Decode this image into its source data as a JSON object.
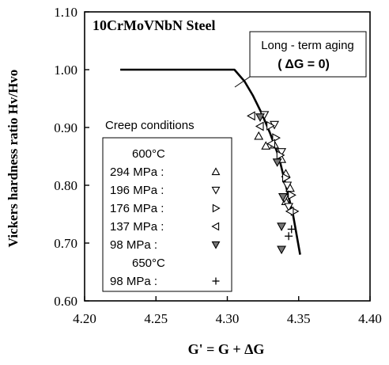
{
  "chart_data": {
    "type": "scatter",
    "title": "10CrMoVNbN Steel",
    "xlabel": "G' = G + ΔG",
    "ylabel": "Vickers hardness ratio Hv/Hvo",
    "xlim": [
      4.2,
      4.4
    ],
    "ylim": [
      0.6,
      1.1
    ],
    "xticks": [
      "4.20",
      "4.25",
      "4.30",
      "4.35",
      "4.40"
    ],
    "yticks": [
      "0.60",
      "0.70",
      "0.80",
      "0.90",
      "1.00",
      "1.10"
    ],
    "grid": false,
    "curve": {
      "label_line1": "Long - term aging",
      "label_line2": "( ΔG = 0)",
      "points": [
        [
          4.225,
          1.0
        ],
        [
          4.305,
          1.0
        ],
        [
          4.312,
          0.98
        ],
        [
          4.318,
          0.955
        ],
        [
          4.324,
          0.925
        ],
        [
          4.33,
          0.89
        ],
        [
          4.336,
          0.85
        ],
        [
          4.341,
          0.8
        ],
        [
          4.346,
          0.75
        ],
        [
          4.351,
          0.68
        ]
      ]
    },
    "legend": {
      "title": "Creep conditions",
      "placement": "lower-left",
      "groups": [
        {
          "temp": "600°C",
          "entries": [
            {
              "label": "294 MPa :",
              "marker": "triangle-up"
            },
            {
              "label": "196 MPa :",
              "marker": "triangle-down"
            },
            {
              "label": "176 MPa :",
              "marker": "triangle-right"
            },
            {
              "label": "137 MPa :",
              "marker": "triangle-left"
            },
            {
              "label": "98 MPa :",
              "marker": "triangle-down-filled"
            }
          ]
        },
        {
          "temp": "650°C",
          "entries": [
            {
              "label": "98 MPa :",
              "marker": "plus"
            }
          ]
        }
      ]
    },
    "series": [
      {
        "marker": "triangle-up",
        "points": [
          [
            4.322,
            0.885
          ],
          [
            4.327,
            0.868
          ],
          [
            4.333,
            0.87
          ],
          [
            4.338,
            0.845
          ],
          [
            4.341,
            0.82
          ],
          [
            4.344,
            0.795
          ],
          [
            4.341,
            0.772
          ]
        ]
      },
      {
        "marker": "triangle-down",
        "points": [
          [
            4.326,
            0.922
          ],
          [
            4.333,
            0.905
          ],
          [
            4.338,
            0.858
          ],
          [
            4.342,
            0.8
          ],
          [
            4.34,
            0.778
          ],
          [
            4.343,
            0.763
          ]
        ]
      },
      {
        "marker": "triangle-right",
        "points": [
          [
            4.33,
            0.903
          ],
          [
            4.334,
            0.882
          ],
          [
            4.337,
            0.852
          ],
          [
            4.341,
            0.813
          ],
          [
            4.345,
            0.783
          ],
          [
            4.347,
            0.755
          ]
        ]
      },
      {
        "marker": "triangle-left",
        "points": [
          [
            4.317,
            0.92
          ],
          [
            4.323,
            0.902
          ],
          [
            4.331,
            0.872
          ],
          [
            4.344,
            0.755
          ]
        ]
      },
      {
        "marker": "triangle-down-filled",
        "points": [
          [
            4.323,
            0.918
          ],
          [
            4.335,
            0.84
          ],
          [
            4.339,
            0.78
          ],
          [
            4.338,
            0.729
          ],
          [
            4.338,
            0.689
          ]
        ]
      },
      {
        "marker": "plus",
        "points": [
          [
            4.345,
            0.724
          ],
          [
            4.343,
            0.712
          ]
        ]
      }
    ]
  }
}
